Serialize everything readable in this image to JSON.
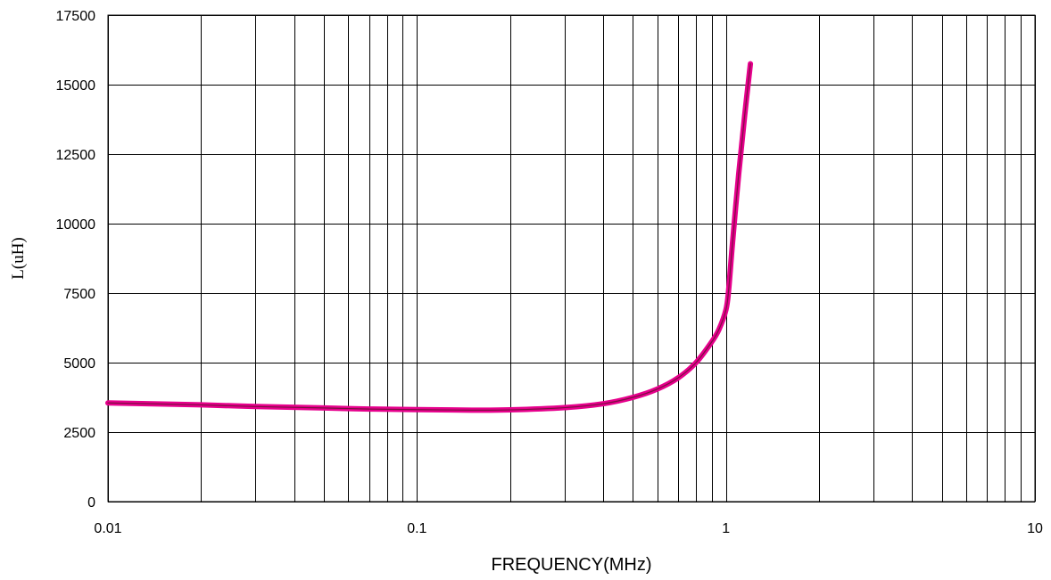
{
  "chart_data": {
    "type": "line",
    "title": "",
    "xlabel": "FREQUENCY(MHz)",
    "ylabel": "L(uH)",
    "x_scale": "log",
    "xlim": [
      0.01,
      10
    ],
    "ylim": [
      0,
      17500
    ],
    "x_ticks": [
      0.01,
      0.1,
      1,
      10
    ],
    "x_tick_labels": [
      "0.01",
      "0.1",
      "1",
      "10"
    ],
    "y_ticks": [
      0,
      2500,
      5000,
      7500,
      10000,
      12500,
      15000,
      17500
    ],
    "y_tick_labels": [
      "0",
      "2500",
      "5000",
      "7500",
      "10000",
      "12500",
      "15000",
      "17500"
    ],
    "grid": true,
    "legend": "none",
    "series": [
      {
        "color": "#e6008c",
        "x": [
          0.01,
          0.02,
          0.03,
          0.05,
          0.07,
          0.1,
          0.15,
          0.2,
          0.3,
          0.4,
          0.5,
          0.6,
          0.7,
          0.8,
          0.9,
          0.95,
          1.0,
          1.02,
          1.05,
          1.1,
          1.15,
          1.2
        ],
        "y": [
          3550,
          3480,
          3420,
          3370,
          3330,
          3310,
          3290,
          3300,
          3380,
          3520,
          3750,
          4050,
          4450,
          5000,
          5750,
          6200,
          6900,
          7600,
          9300,
          11800,
          13900,
          15750
        ]
      }
    ]
  }
}
